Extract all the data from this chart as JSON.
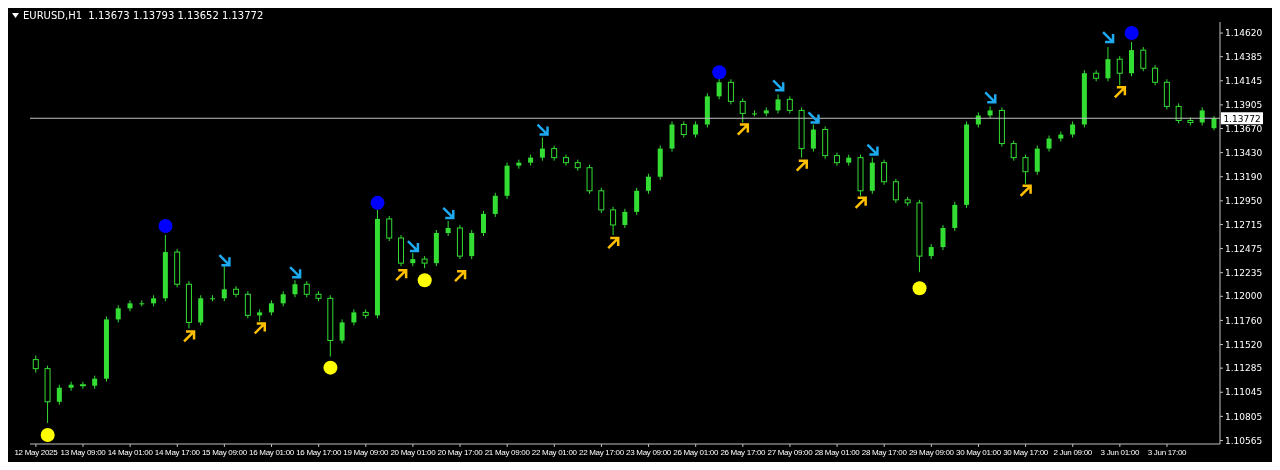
{
  "chart_data": {
    "type": "candlestick",
    "title": "EURUSD,H1  1.13673 1.13793 1.13652 1.13772",
    "color": "#33dd33",
    "categories": [
      "12 May 2025",
      null,
      null,
      null,
      "13 May 09:00",
      null,
      null,
      null,
      "14 May 01:00",
      null,
      null,
      null,
      "14 May 17:00",
      null,
      null,
      null,
      "15 May 09:00",
      null,
      null,
      null,
      "16 May 01:00",
      null,
      null,
      null,
      "16 May 17:00",
      null,
      null,
      null,
      "19 May 09:00",
      null,
      null,
      null,
      "20 May 01:00",
      null,
      null,
      null,
      "20 May 17:00",
      null,
      null,
      null,
      "21 May 09:00",
      null,
      null,
      null,
      "22 May 01:00",
      null,
      null,
      null,
      "22 May 17:00",
      null,
      null,
      null,
      "23 May 09:00",
      null,
      null,
      null,
      "26 May 01:00",
      null,
      null,
      null,
      "26 May 17:00",
      null,
      null,
      null,
      "27 May 09:00",
      null,
      null,
      null,
      "28 May 01:00",
      null,
      null,
      null,
      "28 May 17:00",
      null,
      null,
      null,
      "29 May 09:00",
      null,
      null,
      null,
      "30 May 01:00",
      null,
      null,
      null,
      "30 May 17:00",
      null,
      null,
      null,
      "2 Jun 09:00",
      null,
      null,
      null,
      "3 Jun 01:00",
      null,
      null,
      null,
      "3 Jun 17:00",
      null,
      null,
      null,
      null
    ],
    "ohlc": [
      [
        1.1137,
        1.1141,
        1.1124,
        1.1128
      ],
      [
        1.1128,
        1.1131,
        1.1074,
        1.1095
      ],
      [
        1.1095,
        1.1112,
        1.1092,
        1.1109
      ],
      [
        1.1109,
        1.1115,
        1.1106,
        1.1112
      ],
      [
        1.1112,
        1.1115,
        1.1108,
        1.1111
      ],
      [
        1.1111,
        1.1121,
        1.1108,
        1.1118
      ],
      [
        1.1118,
        1.118,
        1.1115,
        1.1177
      ],
      [
        1.1177,
        1.1191,
        1.1174,
        1.1188
      ],
      [
        1.1188,
        1.1196,
        1.1185,
        1.1193
      ],
      [
        1.1193,
        1.1196,
        1.119,
        1.1193
      ],
      [
        1.1193,
        1.1201,
        1.119,
        1.1198
      ],
      [
        1.1198,
        1.1261,
        1.1195,
        1.1244
      ],
      [
        1.1244,
        1.1247,
        1.1209,
        1.1212
      ],
      [
        1.1212,
        1.1215,
        1.1168,
        1.1174
      ],
      [
        1.1174,
        1.1201,
        1.1171,
        1.1198
      ],
      [
        1.1198,
        1.1201,
        1.1195,
        1.1198
      ],
      [
        1.1198,
        1.123,
        1.1195,
        1.1207
      ],
      [
        1.1207,
        1.121,
        1.1199,
        1.1202
      ],
      [
        1.1202,
        1.1205,
        1.1178,
        1.1181
      ],
      [
        1.1181,
        1.1187,
        1.1175,
        1.1184
      ],
      [
        1.1184,
        1.1196,
        1.1181,
        1.1193
      ],
      [
        1.1193,
        1.1205,
        1.119,
        1.1202
      ],
      [
        1.1202,
        1.1216,
        1.1199,
        1.1212
      ],
      [
        1.1212,
        1.1215,
        1.1199,
        1.1202
      ],
      [
        1.1202,
        1.1205,
        1.1195,
        1.1198
      ],
      [
        1.1198,
        1.1201,
        1.114,
        1.1156
      ],
      [
        1.1156,
        1.1177,
        1.1153,
        1.1174
      ],
      [
        1.1174,
        1.1187,
        1.1171,
        1.1184
      ],
      [
        1.1184,
        1.1187,
        1.1178,
        1.1181
      ],
      [
        1.1181,
        1.1286,
        1.1178,
        1.1277
      ],
      [
        1.1277,
        1.128,
        1.1255,
        1.1258
      ],
      [
        1.1258,
        1.1261,
        1.123,
        1.1233
      ],
      [
        1.1233,
        1.1243,
        1.123,
        1.1237
      ],
      [
        1.1237,
        1.124,
        1.1228,
        1.1233
      ],
      [
        1.1233,
        1.1266,
        1.123,
        1.1263
      ],
      [
        1.1263,
        1.1275,
        1.126,
        1.1268
      ],
      [
        1.1268,
        1.1271,
        1.1237,
        1.124
      ],
      [
        1.124,
        1.1266,
        1.1237,
        1.1263
      ],
      [
        1.1263,
        1.1285,
        1.126,
        1.1282
      ],
      [
        1.1282,
        1.1303,
        1.1279,
        1.13
      ],
      [
        1.13,
        1.1333,
        1.1297,
        1.133
      ],
      [
        1.133,
        1.1336,
        1.1327,
        1.1333
      ],
      [
        1.1333,
        1.1341,
        1.133,
        1.1338
      ],
      [
        1.1338,
        1.1358,
        1.1335,
        1.1347
      ],
      [
        1.1347,
        1.135,
        1.1335,
        1.1338
      ],
      [
        1.1338,
        1.1341,
        1.133,
        1.1333
      ],
      [
        1.1333,
        1.1336,
        1.1325,
        1.1328
      ],
      [
        1.1328,
        1.1331,
        1.1302,
        1.1305
      ],
      [
        1.1305,
        1.1308,
        1.1283,
        1.1286
      ],
      [
        1.1286,
        1.1289,
        1.1261,
        1.1271
      ],
      [
        1.1271,
        1.1287,
        1.1268,
        1.1284
      ],
      [
        1.1284,
        1.1308,
        1.1281,
        1.1305
      ],
      [
        1.1305,
        1.1322,
        1.1302,
        1.1319
      ],
      [
        1.1319,
        1.135,
        1.1316,
        1.1347
      ],
      [
        1.1347,
        1.1374,
        1.1344,
        1.1371
      ],
      [
        1.1371,
        1.1374,
        1.1358,
        1.1361
      ],
      [
        1.1361,
        1.1374,
        1.1358,
        1.1371
      ],
      [
        1.1371,
        1.1402,
        1.1368,
        1.1399
      ],
      [
        1.1399,
        1.1417,
        1.1396,
        1.1413
      ],
      [
        1.1413,
        1.1416,
        1.1391,
        1.1394
      ],
      [
        1.1394,
        1.1397,
        1.1373,
        1.1382
      ],
      [
        1.1382,
        1.1385,
        1.1379,
        1.1382
      ],
      [
        1.1382,
        1.1388,
        1.1379,
        1.1385
      ],
      [
        1.1385,
        1.1401,
        1.1382,
        1.1396
      ],
      [
        1.1396,
        1.1399,
        1.1382,
        1.1385
      ],
      [
        1.1385,
        1.1388,
        1.1338,
        1.1347
      ],
      [
        1.1347,
        1.1371,
        1.1344,
        1.1366
      ],
      [
        1.1366,
        1.1369,
        1.1337,
        1.134
      ],
      [
        1.134,
        1.1343,
        1.133,
        1.1333
      ],
      [
        1.1333,
        1.1341,
        1.133,
        1.1338
      ],
      [
        1.1338,
        1.1341,
        1.13,
        1.1305
      ],
      [
        1.1305,
        1.1338,
        1.1302,
        1.1333
      ],
      [
        1.1333,
        1.1336,
        1.1311,
        1.1314
      ],
      [
        1.1314,
        1.1317,
        1.1293,
        1.1296
      ],
      [
        1.1296,
        1.1299,
        1.129,
        1.1293
      ],
      [
        1.1293,
        1.1296,
        1.1224,
        1.124
      ],
      [
        1.124,
        1.1252,
        1.1237,
        1.1249
      ],
      [
        1.1249,
        1.1271,
        1.1246,
        1.1268
      ],
      [
        1.1268,
        1.1294,
        1.1265,
        1.1291
      ],
      [
        1.1291,
        1.1374,
        1.1288,
        1.1371
      ],
      [
        1.1371,
        1.1383,
        1.1368,
        1.138
      ],
      [
        1.138,
        1.1389,
        1.1377,
        1.1385
      ],
      [
        1.1385,
        1.1388,
        1.1349,
        1.1352
      ],
      [
        1.1352,
        1.1355,
        1.1335,
        1.1338
      ],
      [
        1.1338,
        1.1341,
        1.1312,
        1.1324
      ],
      [
        1.1324,
        1.135,
        1.1321,
        1.1347
      ],
      [
        1.1347,
        1.136,
        1.1344,
        1.1357
      ],
      [
        1.1357,
        1.1364,
        1.1354,
        1.1361
      ],
      [
        1.1361,
        1.1374,
        1.1358,
        1.1371
      ],
      [
        1.1371,
        1.1425,
        1.1368,
        1.1422
      ],
      [
        1.1422,
        1.1425,
        1.1414,
        1.1417
      ],
      [
        1.1417,
        1.1448,
        1.1414,
        1.1436
      ],
      [
        1.1436,
        1.1439,
        1.141,
        1.1422
      ],
      [
        1.1422,
        1.1453,
        1.1419,
        1.1445
      ],
      [
        1.1445,
        1.1448,
        1.1424,
        1.1427
      ],
      [
        1.1427,
        1.143,
        1.141,
        1.1413
      ],
      [
        1.1413,
        1.1416,
        1.1386,
        1.1389
      ],
      [
        1.1389,
        1.1392,
        1.1372,
        1.1375
      ],
      [
        1.1375,
        1.1378,
        1.137,
        1.1373
      ],
      [
        1.1373,
        1.1388,
        1.137,
        1.1385
      ],
      [
        1.13673,
        1.13793,
        1.13652,
        1.13772
      ]
    ],
    "series": [
      {
        "type": "scatter",
        "marker": "circle",
        "color": "#0000ff",
        "values": [
          null,
          null,
          null,
          null,
          null,
          null,
          null,
          null,
          null,
          null,
          null,
          1.127,
          null,
          null,
          null,
          null,
          null,
          null,
          null,
          null,
          null,
          null,
          null,
          null,
          null,
          null,
          null,
          null,
          null,
          1.1293,
          null,
          null,
          null,
          null,
          null,
          null,
          null,
          null,
          null,
          null,
          null,
          null,
          null,
          null,
          null,
          null,
          null,
          null,
          null,
          null,
          null,
          null,
          null,
          null,
          null,
          null,
          null,
          null,
          1.1423,
          null,
          null,
          null,
          null,
          null,
          null,
          null,
          null,
          null,
          null,
          null,
          null,
          null,
          null,
          null,
          null,
          null,
          null,
          null,
          null,
          null,
          null,
          null,
          null,
          null,
          null,
          null,
          null,
          null,
          null,
          null,
          null,
          null,
          null,
          1.1462,
          null,
          null,
          null,
          null,
          null,
          null,
          null
        ]
      },
      {
        "type": "scatter",
        "marker": "circle",
        "color": "#ffff00",
        "values": [
          null,
          1.1062,
          null,
          null,
          null,
          null,
          null,
          null,
          null,
          null,
          null,
          null,
          null,
          null,
          null,
          null,
          null,
          null,
          null,
          null,
          null,
          null,
          null,
          null,
          null,
          1.1129,
          null,
          null,
          null,
          null,
          null,
          null,
          null,
          1.1216,
          null,
          null,
          null,
          null,
          null,
          null,
          null,
          null,
          null,
          null,
          null,
          null,
          null,
          null,
          null,
          null,
          null,
          null,
          null,
          null,
          null,
          null,
          null,
          null,
          null,
          null,
          null,
          null,
          null,
          null,
          null,
          null,
          null,
          null,
          null,
          null,
          null,
          null,
          null,
          null,
          null,
          1.1208,
          null,
          null,
          null,
          null,
          null,
          null,
          null,
          null,
          null,
          null,
          null,
          null,
          null,
          null,
          null,
          null,
          null,
          null,
          null,
          null,
          null,
          null,
          null,
          null,
          null
        ]
      },
      {
        "type": "scatter",
        "color": "#1eaaf0",
        "values": [
          null,
          null,
          null,
          null,
          null,
          null,
          null,
          null,
          null,
          null,
          null,
          null,
          null,
          null,
          null,
          null,
          1.1236,
          null,
          null,
          null,
          null,
          null,
          1.1224,
          null,
          null,
          null,
          null,
          null,
          null,
          null,
          null,
          null,
          1.125,
          null,
          null,
          1.1283,
          null,
          null,
          null,
          null,
          null,
          null,
          null,
          1.1366,
          null,
          null,
          null,
          null,
          null,
          null,
          null,
          null,
          null,
          null,
          null,
          null,
          null,
          null,
          null,
          null,
          null,
          null,
          null,
          1.141,
          null,
          null,
          1.1378,
          null,
          null,
          null,
          null,
          1.1346,
          null,
          null,
          null,
          null,
          null,
          null,
          null,
          null,
          null,
          1.1398,
          null,
          null,
          null,
          null,
          null,
          null,
          null,
          null,
          null,
          1.1458,
          null,
          null,
          null,
          null,
          null,
          null,
          null,
          null,
          null
        ]
      },
      {
        "type": "scatter",
        "color": "#ffc000",
        "values": [
          null,
          null,
          null,
          null,
          null,
          null,
          null,
          null,
          null,
          null,
          null,
          null,
          null,
          1.116,
          null,
          null,
          null,
          null,
          null,
          1.1168,
          null,
          null,
          null,
          null,
          null,
          null,
          null,
          null,
          null,
          null,
          null,
          1.1221,
          null,
          null,
          null,
          null,
          1.122,
          null,
          null,
          null,
          null,
          null,
          null,
          null,
          null,
          null,
          null,
          null,
          null,
          1.1253,
          null,
          null,
          null,
          null,
          null,
          null,
          null,
          null,
          null,
          null,
          1.1366,
          null,
          null,
          null,
          null,
          1.133,
          null,
          null,
          null,
          null,
          1.1293,
          null,
          null,
          null,
          null,
          null,
          null,
          null,
          null,
          null,
          null,
          null,
          null,
          null,
          1.1305,
          null,
          null,
          null,
          null,
          null,
          null,
          null,
          1.1403,
          null,
          null,
          null,
          null,
          null,
          null,
          null,
          null
        ]
      }
    ],
    "ylim": [
      1.1053,
      1.1473
    ],
    "yticks": [
      {
        "value": 1.1462,
        "label": "1.14620"
      },
      {
        "value": 1.14385,
        "label": "1.14385"
      },
      {
        "value": 1.14145,
        "label": "1.14145"
      },
      {
        "value": 1.13905,
        "label": "1.13905"
      },
      {
        "value": 1.1367,
        "label": "1.13670"
      },
      {
        "value": 1.1343,
        "label": "1.13430"
      },
      {
        "value": 1.1319,
        "label": "1.13190"
      },
      {
        "value": 1.1295,
        "label": "1.12950"
      },
      {
        "value": 1.12715,
        "label": "1.12715"
      },
      {
        "value": 1.12475,
        "label": "1.12475"
      },
      {
        "value": 1.12235,
        "label": "1.12235"
      },
      {
        "value": 1.12,
        "label": "1.12000"
      },
      {
        "value": 1.1176,
        "label": "1.11760"
      },
      {
        "value": 1.1152,
        "label": "1.11520"
      },
      {
        "value": 1.11285,
        "label": "1.11285"
      },
      {
        "value": 1.11045,
        "label": "1.11045"
      },
      {
        "value": 1.10805,
        "label": "1.10805"
      },
      {
        "value": 1.10565,
        "label": "1.10565"
      }
    ],
    "ref_lines": [
      {
        "axis": "y",
        "value": 1.13772,
        "label": "1.13772",
        "color": "#c0c0c0"
      }
    ]
  }
}
